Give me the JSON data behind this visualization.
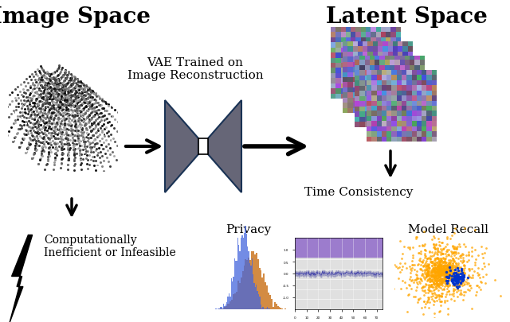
{
  "title_left": "Image Space",
  "title_right": "Latent Space",
  "vae_label": "VAE Trained on\nImage Reconstruction",
  "time_consistency_label": "Time Consistency",
  "inefficient_label": "Computationally\nInefficient or Infeasible",
  "privacy_label": "Privacy",
  "model_recall_label": "Model Recall",
  "bg_color": "#ffffff",
  "title_fontsize": 20,
  "label_fontsize": 11
}
